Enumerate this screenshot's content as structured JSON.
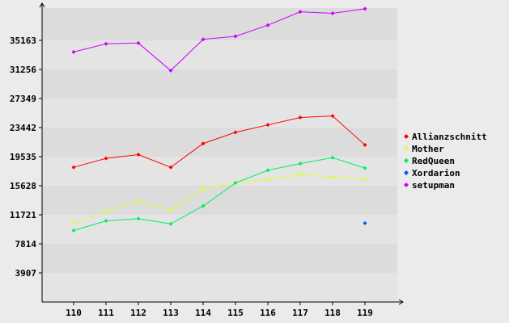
{
  "chart_data": {
    "type": "line",
    "title": "",
    "xlabel": "",
    "ylabel": "",
    "x": [
      "110",
      "111",
      "112",
      "113",
      "114",
      "115",
      "116",
      "117",
      "118",
      "119"
    ],
    "ylim": [
      0,
      39500
    ],
    "y_ticks": [
      "3907",
      "7814",
      "11721",
      "15628",
      "19535",
      "23442",
      "27349",
      "31256",
      "35163"
    ],
    "grid": "horizontal bands",
    "legend_position": "right",
    "series": [
      {
        "name": "Allianzschnitt",
        "color": "#ff0000",
        "values": [
          18100,
          19300,
          19800,
          18100,
          21300,
          22800,
          23800,
          24800,
          25000,
          21100
        ]
      },
      {
        "name": "Mother",
        "color": "#ddff33",
        "values": [
          10600,
          12200,
          13500,
          12400,
          15200,
          16100,
          16500,
          17100,
          16800,
          16500
        ]
      },
      {
        "name": "RedQueen",
        "color": "#00ee66",
        "values": [
          9600,
          10900,
          11200,
          10500,
          12900,
          16000,
          17700,
          18600,
          19400,
          18000
        ]
      },
      {
        "name": "Xordarion",
        "color": "#0055ff",
        "values": [
          null,
          null,
          null,
          null,
          null,
          null,
          null,
          null,
          null,
          10600
        ]
      },
      {
        "name": "setupman",
        "color": "#cc00ff",
        "values": [
          33600,
          34700,
          34800,
          31100,
          35300,
          35700,
          37200,
          39000,
          38800,
          39400
        ]
      }
    ]
  }
}
